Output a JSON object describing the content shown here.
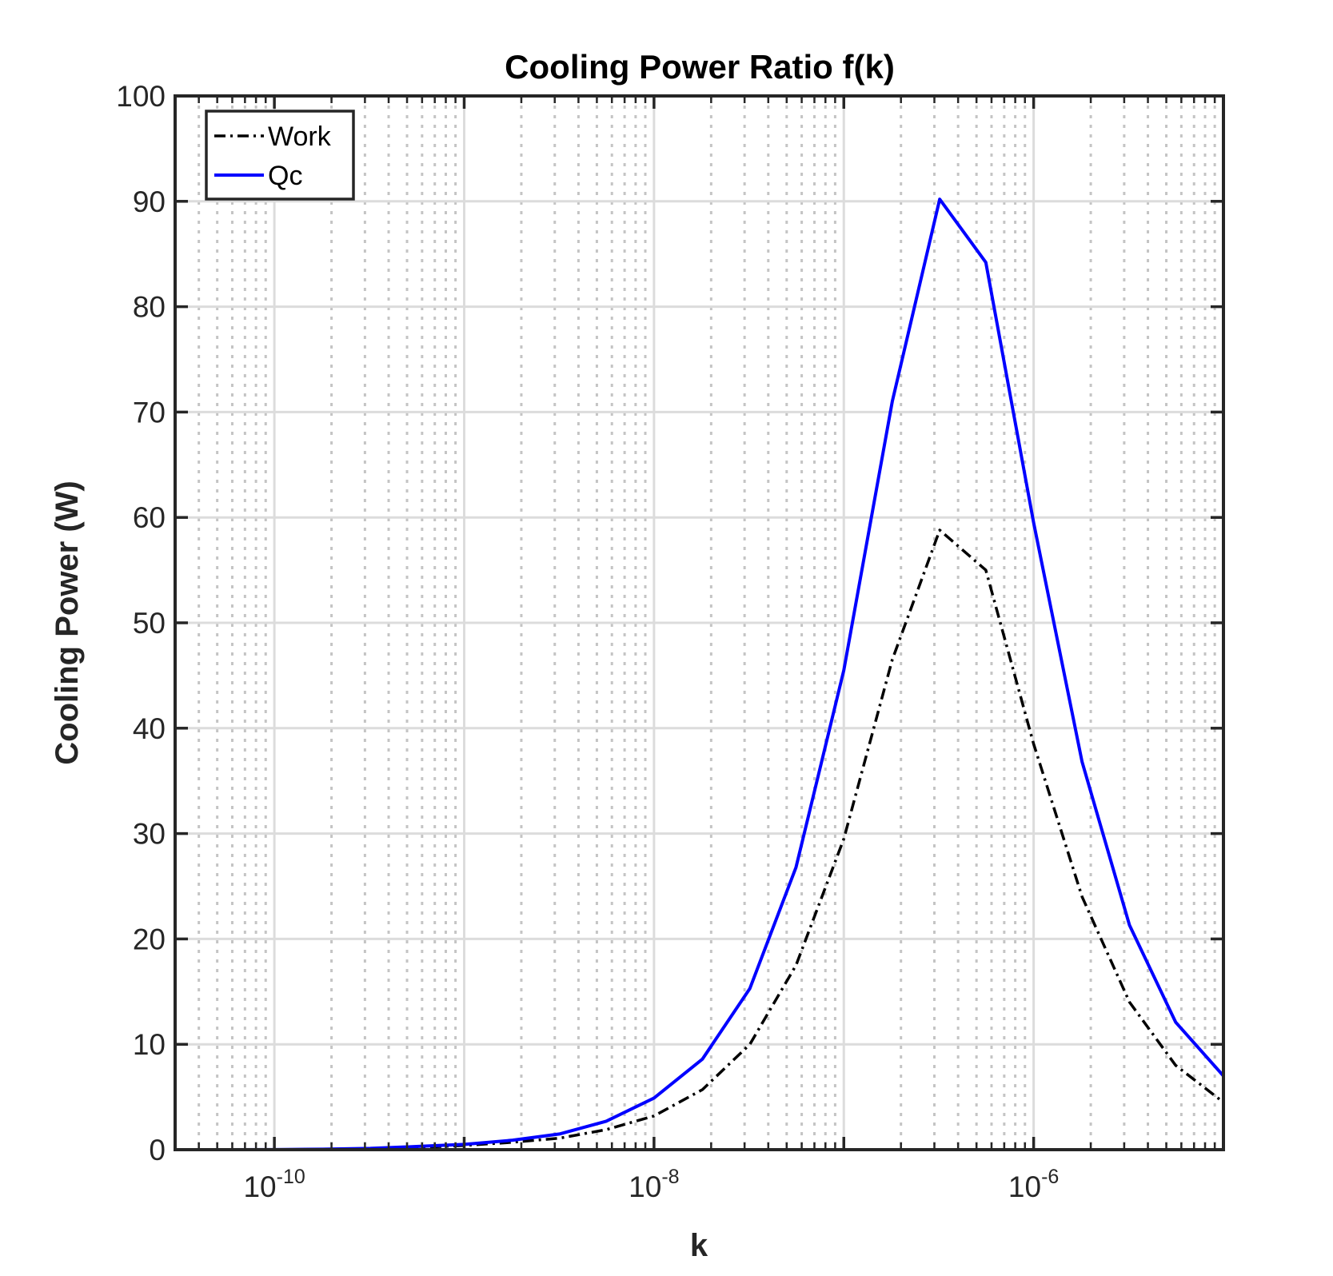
{
  "chart_data": {
    "type": "line",
    "title": "Cooling Power Ratio f(k)",
    "xlabel": "k",
    "ylabel": "Cooling Power (W)",
    "xscale": "log",
    "xlim": [
      3e-11,
      1e-05
    ],
    "ylim": [
      0,
      100
    ],
    "yticks": [
      0,
      10,
      20,
      30,
      40,
      50,
      60,
      70,
      80,
      90,
      100
    ],
    "xtick_labels": [
      {
        "value": 1e-10,
        "base": "10",
        "exp": "-10"
      },
      {
        "value": 1e-08,
        "base": "10",
        "exp": "-8"
      },
      {
        "value": 1e-06,
        "base": "10",
        "exp": "-6"
      }
    ],
    "grid": true,
    "legend_position": "top-left",
    "series": [
      {
        "name": "Work",
        "color": "#000000",
        "style": "dash-dot",
        "x": [
          3e-11,
          5.6e-11,
          1e-10,
          1.8e-10,
          3.2e-10,
          5.6e-10,
          1e-09,
          1.8e-09,
          3.2e-09,
          5.6e-09,
          1e-08,
          1.8e-08,
          3.2e-08,
          5.6e-08,
          1e-07,
          1.8e-07,
          3.2e-07,
          5.6e-07,
          1e-06,
          1.8e-06,
          3.2e-06,
          5.6e-06,
          1e-05
        ],
        "values": [
          0,
          0,
          0.01,
          0.03,
          0.08,
          0.2,
          0.4,
          0.7,
          1.1,
          1.9,
          3.2,
          5.7,
          10,
          17.5,
          29.5,
          46.5,
          58.8,
          55,
          38.5,
          24,
          14,
          8,
          4.5
        ]
      },
      {
        "name": "Qc",
        "color": "#0000ff",
        "style": "solid",
        "x": [
          3e-11,
          5.6e-11,
          1e-10,
          1.8e-10,
          3.2e-10,
          5.6e-10,
          1e-09,
          1.8e-09,
          3.2e-09,
          5.6e-09,
          1e-08,
          1.8e-08,
          3.2e-08,
          5.6e-08,
          1e-07,
          1.8e-07,
          3.2e-07,
          5.6e-07,
          1e-06,
          1.8e-06,
          3.2e-06,
          5.6e-06,
          1e-05
        ],
        "values": [
          0,
          0,
          0.01,
          0.05,
          0.12,
          0.3,
          0.5,
          0.9,
          1.5,
          2.7,
          4.9,
          8.6,
          15.3,
          26.8,
          45.5,
          71,
          90.2,
          84.2,
          59.5,
          36.8,
          21.3,
          12.1,
          7
        ]
      }
    ]
  }
}
